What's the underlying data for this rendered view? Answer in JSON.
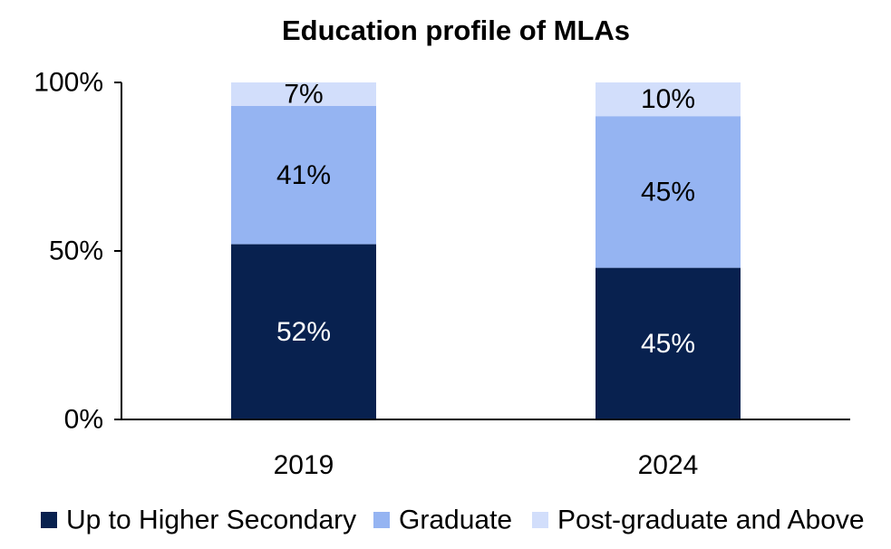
{
  "chart_data": {
    "type": "bar",
    "stacked": true,
    "title": "Education profile of MLAs",
    "categories": [
      "2019",
      "2024"
    ],
    "series": [
      {
        "name": "Up to Higher Secondary",
        "values": [
          52,
          45
        ],
        "labels": [
          "52%",
          "45%"
        ],
        "color": "#08214f",
        "label_color": "#ffffff"
      },
      {
        "name": "Graduate",
        "values": [
          41,
          45
        ],
        "labels": [
          "41%",
          "45%"
        ],
        "color": "#95b4f2",
        "label_color": "#000000"
      },
      {
        "name": "Post-graduate and Above",
        "values": [
          7,
          10
        ],
        "labels": [
          "7%",
          "10%"
        ],
        "color": "#d2defb",
        "label_color": "#000000"
      }
    ],
    "ylim": [
      0,
      100
    ],
    "yticks": [
      "0%",
      "50%",
      "100%"
    ],
    "ytick_values": [
      0,
      50,
      100
    ],
    "xlabel": "",
    "ylabel": "",
    "grid": false,
    "legend_position": "bottom"
  }
}
